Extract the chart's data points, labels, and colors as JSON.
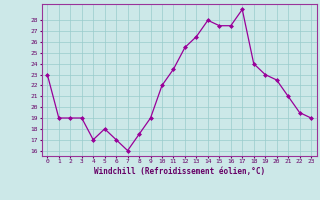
{
  "x": [
    0,
    1,
    2,
    3,
    4,
    5,
    6,
    7,
    8,
    9,
    10,
    11,
    12,
    13,
    14,
    15,
    16,
    17,
    18,
    19,
    20,
    21,
    22,
    23
  ],
  "y": [
    23,
    19,
    19,
    19,
    17,
    18,
    17,
    16,
    17.5,
    19,
    22,
    23.5,
    25.5,
    26.5,
    28,
    27.5,
    27.5,
    29,
    24,
    23,
    22.5,
    21,
    19.5,
    19
  ],
  "line_color": "#990099",
  "marker_color": "#990099",
  "bg_color": "#cce8e8",
  "grid_color": "#99cccc",
  "border_color": "#993399",
  "xlabel": "Windchill (Refroidissement éolien,°C)",
  "xlabel_color": "#660066",
  "tick_color": "#660066",
  "ylim_min": 15.5,
  "ylim_max": 29.5,
  "yticks": [
    16,
    17,
    18,
    19,
    20,
    21,
    22,
    23,
    24,
    25,
    26,
    27,
    28
  ],
  "xlim_min": -0.5,
  "xlim_max": 23.5
}
